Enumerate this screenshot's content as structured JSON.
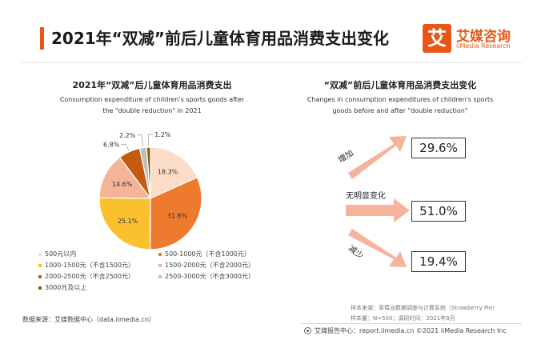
{
  "header": {
    "title": "2021年“双减”前后儿童体育用品消费支出变化",
    "logo_mark": "艾",
    "logo_name": "艾媒咨询",
    "logo_sub": "iiMedia Research"
  },
  "colors": {
    "accent": "#e8571a",
    "arrow": "#f4b39a",
    "slices": [
      "#fbdcc6",
      "#ee7a2e",
      "#fbc02d",
      "#f3b497",
      "#c55a11",
      "#bfbfbf",
      "#7f6000"
    ]
  },
  "chart_data": [
    {
      "type": "pie",
      "title": "2021年“双减”后儿童体育用品消费支出",
      "subtitle_lines": [
        "Consumption expenditure of children's sports goods after",
        "the \"double reduction\" in 2021"
      ],
      "unit": "%",
      "categories": [
        "500元以内",
        "500-1000元（不含1000元）",
        "1000-1500元（不含1500元）",
        "1500-2000元（不含2000元）",
        "2000-2500元（不含2500元）",
        "2500-3000元（不含3000元）",
        "3000元及以上"
      ],
      "values": [
        18.3,
        31.8,
        25.1,
        14.6,
        6.8,
        2.2,
        1.2
      ],
      "value_labels": [
        "18.3%",
        "31.8%",
        "25.1%",
        "14.6%",
        "6.8%",
        "2.2%",
        "1.2%"
      ],
      "legend_placement": "bottom"
    },
    {
      "type": "table",
      "title": "“双减”前后儿童体育用品消费支出变化",
      "subtitle_lines": [
        "Changes in consumption expenditures of children's sports",
        "goods before and after \"double reduction\""
      ],
      "categories": [
        "增加",
        "无明显变化",
        "减少"
      ],
      "values": [
        29.6,
        51.0,
        19.4
      ],
      "value_labels": [
        "29.6%",
        "51.0%",
        "19.4%"
      ]
    }
  ],
  "sources": {
    "left": "数据来源：艾媒数据中心（data.iimedia.cn）",
    "right_line1": "样本来源：草莓派数据调查与计算系统（Strawberry Pie）",
    "right_line2": "样本量：N=500；调研时间：2021年9月",
    "footer": "艾媒报告中心：report.iimedia.cn ©2021  iiMedia Research  Inc"
  }
}
